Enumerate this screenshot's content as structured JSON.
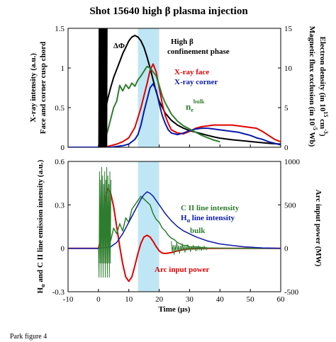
{
  "title": "Shot 15640 high β plasma injection",
  "footnote": "Park figure 4",
  "colors": {
    "black": "#000000",
    "red": "#e00000",
    "blue": "#0a1aa8",
    "green": "#2e7d2e",
    "highlight": "#bfe6f5"
  },
  "chart_data": [
    {
      "type": "line",
      "panel": "top",
      "xlim": [
        -10,
        60
      ],
      "xticks": [
        -10,
        0,
        10,
        20,
        30,
        40,
        50,
        60
      ],
      "ylim_left": [
        0,
        1.5
      ],
      "yticks_left": [
        "0",
        "0.5",
        "1",
        "1.5"
      ],
      "ylim_right": [
        0,
        15
      ],
      "yticks_right": [
        "0",
        "5",
        "10",
        "15"
      ],
      "ylabel_left": [
        "X-ray intensity (a.u.)",
        "Face and corner cusp chord"
      ],
      "ylabel_right": [
        "Electron density (in 10",
        "Magnetic flux exclusion (in 10",
        "-5",
        "15",
        "-3",
        " cm",
        " Wb)",
        ")"
      ],
      "highlight_band": [
        13,
        20
      ],
      "annotations": {
        "phase_line1": "High β",
        "phase_line2": "confinement phase",
        "delta_phi": "ΔΦ",
        "xray_face": "X-ray face",
        "xray_corner": "X-ray corner",
        "ne": "n",
        "ne_sub": "e",
        "ne_sup": "bulk"
      },
      "series": [
        {
          "key": "delta_phi",
          "color": "black",
          "axis": "right",
          "x": [
            -10,
            0,
            1,
            2,
            3,
            4,
            5,
            6,
            7,
            8,
            9,
            10,
            11,
            12,
            13,
            14,
            15,
            16,
            17,
            18,
            19,
            20,
            22,
            24,
            26,
            28,
            30,
            32,
            34,
            36,
            38,
            40,
            44,
            48,
            52,
            56,
            60
          ],
          "y": [
            0,
            0,
            1.5,
            4,
            6,
            7.5,
            8.8,
            9.8,
            10.8,
            11.8,
            12.6,
            13.4,
            13.9,
            14.1,
            13.9,
            13.4,
            12.6,
            11.4,
            10,
            8.5,
            7,
            5.8,
            4.3,
            3.4,
            2.8,
            2.4,
            2.1,
            1.9,
            1.7,
            1.5,
            1.3,
            1.15,
            0.95,
            0.8,
            0.65,
            0.5,
            0.4
          ]
        },
        {
          "key": "xray_face",
          "color": "red",
          "axis": "left",
          "x": [
            -10,
            0,
            2,
            4,
            6,
            8,
            10,
            12,
            14,
            15,
            16,
            17,
            18,
            19,
            20,
            21,
            22,
            23,
            24,
            26,
            28,
            30,
            32,
            34,
            36,
            38,
            40,
            42,
            44,
            46,
            48,
            50,
            52,
            54,
            56,
            58,
            60
          ],
          "y": [
            0,
            0,
            0,
            0.02,
            0.04,
            0.07,
            0.12,
            0.25,
            0.5,
            0.65,
            0.8,
            0.97,
            1.05,
            0.95,
            0.75,
            0.55,
            0.4,
            0.3,
            0.22,
            0.18,
            0.17,
            0.2,
            0.24,
            0.26,
            0.27,
            0.28,
            0.28,
            0.28,
            0.28,
            0.27,
            0.26,
            0.25,
            0.24,
            0.2,
            0.15,
            0.1,
            0.07
          ]
        },
        {
          "key": "xray_corner",
          "color": "blue",
          "axis": "left",
          "x": [
            -10,
            0,
            4,
            8,
            10,
            12,
            13,
            14,
            15,
            16,
            17,
            18,
            19,
            20,
            21,
            22,
            23,
            24,
            26,
            28,
            30,
            32,
            34,
            36,
            38,
            40,
            42,
            44,
            46,
            48,
            50,
            52,
            54,
            56,
            58,
            60
          ],
          "y": [
            0,
            0,
            0,
            0.02,
            0.04,
            0.1,
            0.16,
            0.28,
            0.45,
            0.6,
            0.75,
            0.8,
            0.72,
            0.55,
            0.4,
            0.3,
            0.22,
            0.18,
            0.16,
            0.18,
            0.21,
            0.23,
            0.24,
            0.24,
            0.23,
            0.22,
            0.21,
            0.2,
            0.19,
            0.17,
            0.15,
            0.12,
            0.1,
            0.07,
            0.05,
            0.03
          ]
        },
        {
          "key": "ne",
          "color": "green",
          "axis": "right",
          "x": [
            2,
            3,
            4,
            5,
            6,
            7,
            8,
            9,
            10,
            11,
            12,
            13,
            14,
            15,
            16,
            17,
            18,
            19,
            20,
            21,
            22,
            23,
            24,
            26,
            28,
            30,
            32,
            34,
            36,
            38,
            40
          ],
          "y": [
            0.8,
            2,
            3.5,
            5,
            5.8,
            7.8,
            7.1,
            7.9,
            7.4,
            8.1,
            7.7,
            8.5,
            9,
            9.6,
            10.2,
            10,
            9.5,
            9,
            7.8,
            6.5,
            5.6,
            4.9,
            4.2,
            3.3,
            2.7,
            2.3,
            1.9,
            1.5,
            1.2,
            0.9,
            0.7
          ]
        }
      ]
    },
    {
      "type": "line",
      "panel": "bottom",
      "xlim": [
        -10,
        60
      ],
      "xticks": [
        -10,
        0,
        10,
        20,
        30,
        40,
        50,
        60
      ],
      "xtick_labels": [
        "-10",
        "0",
        "10",
        "20",
        "30",
        "40",
        "50",
        "60"
      ],
      "xlabel": "Time (µs)",
      "ylim_left": [
        -0.3,
        0.6
      ],
      "yticks_left": [
        "-0.3",
        "0",
        "0.3",
        "0.6"
      ],
      "ylim_right": [
        -500,
        1000
      ],
      "yticks_right": [
        "-500",
        "0",
        "500",
        "1000"
      ],
      "ylabel_left": "H",
      "ylabel_left_sub": "α",
      "ylabel_left_rest": " and  C II line emission intensity (a.u.)",
      "ylabel_right": "Arc input power (MW)",
      "highlight_band": [
        13,
        20
      ],
      "annotations": {
        "cii": "C II line intensity",
        "ha_main": "H",
        "ha_sub": "α",
        "ha_rest": " line intensity",
        "bulk": "bulk",
        "arc": "Arc input power"
      },
      "series": [
        {
          "key": "arc_power",
          "color": "red",
          "axis": "right",
          "x": [
            -10,
            0,
            1,
            2,
            3,
            4,
            5,
            6,
            7,
            8,
            9,
            10,
            11,
            12,
            13,
            14,
            15,
            16,
            17,
            18,
            19,
            20,
            21,
            22,
            24,
            26,
            28,
            30,
            34,
            40,
            50,
            60
          ],
          "y": [
            0,
            0,
            150,
            520,
            690,
            640,
            480,
            250,
            20,
            -180,
            -330,
            -380,
            -330,
            -200,
            -60,
            60,
            130,
            150,
            130,
            80,
            20,
            -30,
            -55,
            -60,
            -50,
            -30,
            -15,
            -5,
            0,
            0,
            0,
            0
          ]
        },
        {
          "key": "cii",
          "color": "green",
          "axis": "left",
          "x": [
            4,
            5,
            6,
            7,
            8,
            9,
            10,
            11,
            12,
            13,
            14,
            15,
            16,
            17,
            18,
            19,
            20,
            21,
            22,
            23,
            24,
            25,
            26,
            27,
            28,
            29,
            30,
            32,
            34,
            36,
            38,
            40,
            45,
            50,
            55,
            60
          ],
          "y": [
            0.05,
            0.14,
            0.1,
            0.17,
            0.12,
            0.21,
            0.18,
            0.27,
            0.3,
            0.33,
            0.36,
            0.34,
            0.32,
            0.3,
            0.24,
            0.2,
            0.18,
            0.14,
            0.12,
            0.09,
            0.07,
            0.06,
            0.04,
            0.03,
            0.02,
            0.02,
            0.01,
            0.01,
            0.005,
            0.003,
            0.002,
            0.001,
            0,
            0,
            0,
            0
          ]
        },
        {
          "key": "halpha",
          "color": "blue",
          "axis": "left",
          "x": [
            -10,
            0,
            4,
            6,
            8,
            10,
            12,
            14,
            15,
            16,
            17,
            18,
            19,
            20,
            22,
            24,
            26,
            28,
            30,
            32,
            34,
            36,
            38,
            40,
            42,
            44,
            46,
            48,
            50,
            52,
            54,
            56,
            58,
            60
          ],
          "y": [
            0,
            0,
            0.01,
            0.04,
            0.1,
            0.18,
            0.26,
            0.34,
            0.37,
            0.39,
            0.38,
            0.36,
            0.33,
            0.3,
            0.24,
            0.19,
            0.15,
            0.12,
            0.1,
            0.08,
            0.065,
            0.05,
            0.04,
            0.03,
            0.025,
            0.02,
            0.015,
            0.01,
            0.008,
            0.005,
            0.003,
            0.002,
            0.001,
            0
          ]
        }
      ]
    }
  ]
}
